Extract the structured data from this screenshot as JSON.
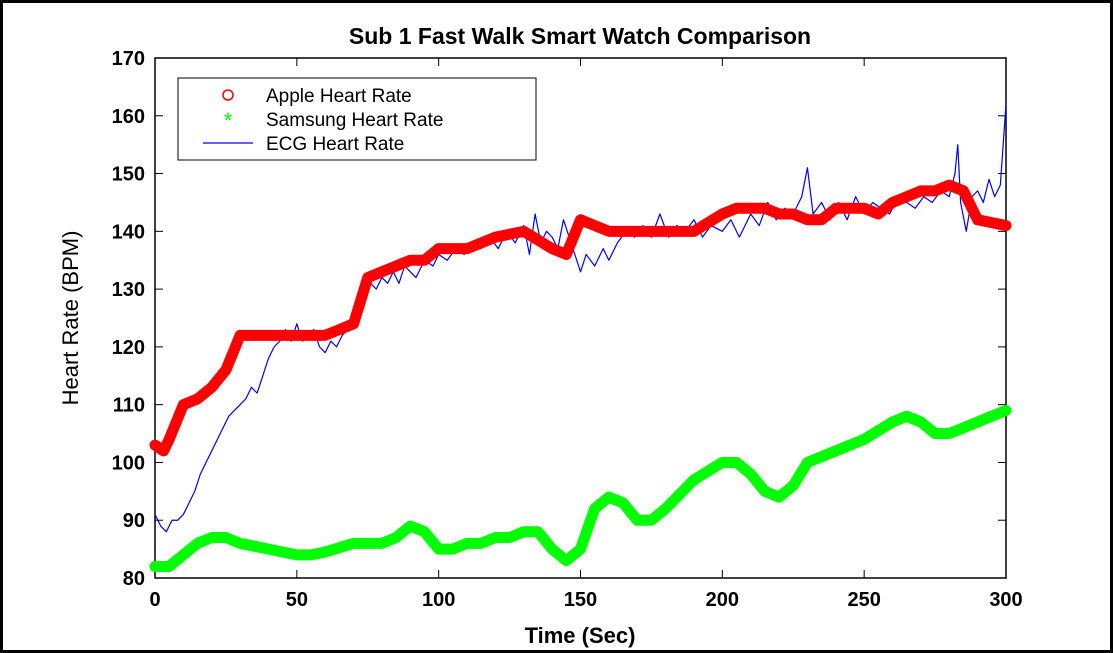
{
  "chart_data": {
    "type": "line",
    "title": "Sub 1 Fast Walk Smart Watch Comparison",
    "x_label": "Time (Sec)",
    "y_label": "Heart Rate (BPM)",
    "xlim": [
      0,
      300
    ],
    "xticks": [
      0,
      50,
      100,
      150,
      200,
      250,
      300
    ],
    "ylim": [
      80,
      170
    ],
    "yticks": [
      80,
      90,
      100,
      110,
      120,
      130,
      140,
      150,
      160,
      170
    ],
    "grid": false,
    "legend": "upper left",
    "series": [
      {
        "name": "Apple Heart Rate",
        "color": "#ff0000",
        "marker": "o",
        "x": [
          0,
          3,
          5,
          10,
          15,
          20,
          25,
          30,
          35,
          40,
          50,
          55,
          60,
          65,
          70,
          75,
          80,
          85,
          90,
          95,
          100,
          110,
          120,
          130,
          140,
          145,
          150,
          155,
          160,
          170,
          180,
          190,
          200,
          205,
          215,
          220,
          225,
          230,
          235,
          240,
          250,
          255,
          260,
          265,
          270,
          275,
          280,
          285,
          290,
          300
        ],
        "values": [
          103,
          102,
          104,
          110,
          111,
          113,
          116,
          122,
          122,
          122,
          122,
          122,
          122,
          123,
          124,
          132,
          133,
          134,
          135,
          135,
          137,
          137,
          139,
          140,
          137,
          136,
          142,
          141,
          140,
          140,
          140,
          140,
          143,
          144,
          144,
          143,
          143,
          142,
          142,
          144,
          144,
          143,
          145,
          146,
          147,
          147,
          148,
          147,
          142,
          141
        ]
      },
      {
        "name": "Samsung Heart Rate",
        "color": "#00ff00",
        "marker": "*",
        "x": [
          0,
          5,
          10,
          15,
          20,
          25,
          30,
          40,
          50,
          55,
          60,
          70,
          80,
          85,
          90,
          95,
          100,
          105,
          110,
          115,
          120,
          125,
          130,
          135,
          140,
          145,
          150,
          155,
          160,
          165,
          170,
          175,
          180,
          190,
          200,
          205,
          210,
          215,
          220,
          225,
          230,
          240,
          250,
          260,
          265,
          270,
          275,
          280,
          290,
          300
        ],
        "values": [
          82,
          82,
          84,
          86,
          87,
          87,
          86,
          85,
          84,
          84,
          84.5,
          86,
          86,
          87,
          89,
          88,
          85,
          85,
          86,
          86,
          87,
          87,
          88,
          88,
          85,
          83,
          85,
          92,
          94,
          93,
          90,
          90,
          92,
          97,
          100,
          100,
          98,
          95,
          94,
          96,
          100,
          102,
          104,
          107,
          108,
          107,
          105,
          105,
          107,
          109
        ]
      },
      {
        "name": "ECG Heart Rate",
        "color": "#0000ff",
        "marker": "-",
        "x": [
          0,
          2,
          4,
          6,
          8,
          10,
          12,
          14,
          16,
          18,
          20,
          22,
          24,
          26,
          28,
          30,
          32,
          34,
          36,
          38,
          40,
          42,
          44,
          46,
          48,
          50,
          52,
          54,
          56,
          58,
          60,
          62,
          64,
          66,
          68,
          70,
          72,
          74,
          76,
          78,
          80,
          82,
          84,
          86,
          88,
          90,
          92,
          95,
          98,
          100,
          103,
          106,
          109,
          112,
          115,
          118,
          121,
          124,
          127,
          130,
          132,
          134,
          136,
          138,
          140,
          142,
          144,
          146,
          148,
          150,
          152,
          155,
          158,
          160,
          163,
          166,
          169,
          172,
          175,
          178,
          181,
          184,
          187,
          190,
          193,
          196,
          200,
          203,
          206,
          210,
          213,
          216,
          219,
          222,
          225,
          228,
          230,
          232,
          235,
          238,
          241,
          244,
          247,
          250,
          253,
          256,
          259,
          262,
          265,
          268,
          271,
          274,
          277,
          280,
          282,
          283,
          284,
          286,
          288,
          290,
          292,
          294,
          296,
          298,
          299,
          300
        ],
        "values": [
          91,
          89,
          88,
          90,
          90,
          91,
          93,
          95,
          98,
          100,
          102,
          104,
          106,
          108,
          109,
          110,
          111,
          113,
          112,
          115,
          118,
          120,
          121,
          123,
          121,
          124,
          121,
          122,
          123,
          120,
          119,
          121,
          120,
          122,
          123,
          124,
          127,
          130,
          131,
          130,
          132,
          131,
          133,
          131,
          134,
          133,
          132,
          135,
          134,
          136,
          135,
          137,
          136,
          138,
          137,
          139,
          137,
          140,
          138,
          141,
          136,
          143,
          138,
          140,
          139,
          137,
          142,
          139,
          136,
          133,
          136,
          134,
          137,
          135,
          138,
          140,
          139,
          141,
          139,
          143,
          139,
          141,
          140,
          142,
          139,
          141,
          140,
          142,
          139,
          143,
          141,
          145,
          142,
          144,
          143,
          146,
          151,
          143,
          145,
          142,
          145,
          142,
          146,
          143,
          145,
          144,
          143,
          146,
          145,
          144,
          146,
          145,
          147,
          146,
          150,
          155,
          145,
          140,
          146,
          147,
          145,
          149,
          146,
          148,
          155,
          162
        ]
      }
    ]
  }
}
